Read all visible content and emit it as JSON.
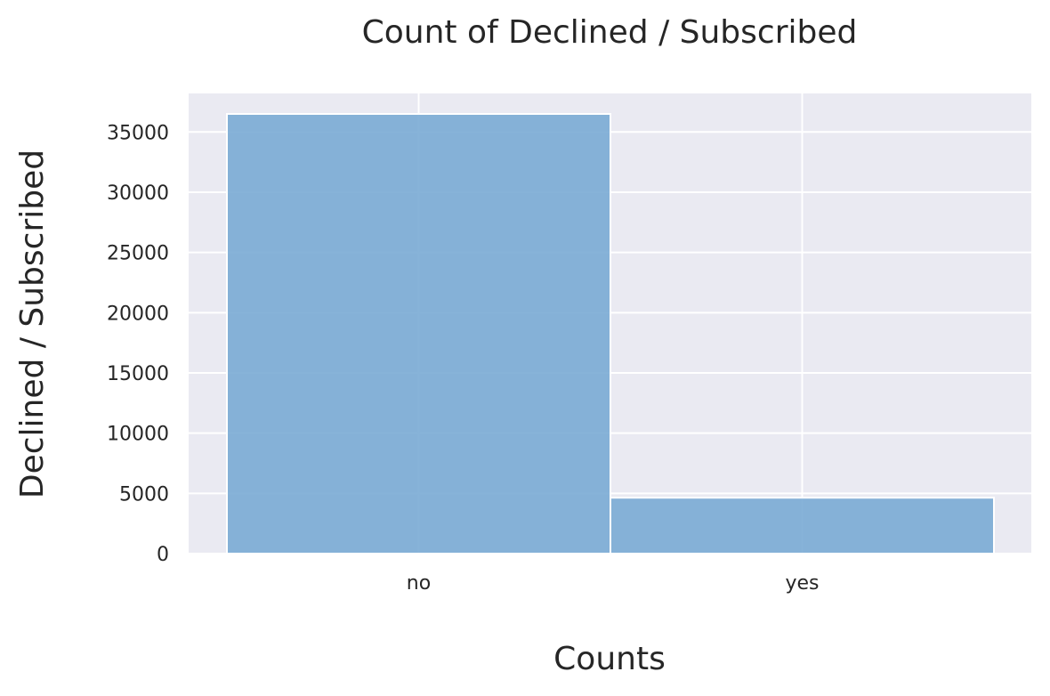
{
  "chart_data": {
    "type": "bar",
    "title": "Count of Declined / Subscribed",
    "xlabel": "Counts",
    "ylabel": "Declined / Subscribed",
    "categories": [
      "no",
      "yes"
    ],
    "values": [
      36500,
      4640
    ],
    "ylim": [
      0,
      38200
    ],
    "yticks": [
      0,
      5000,
      10000,
      15000,
      20000,
      25000,
      30000,
      35000
    ],
    "grid": true,
    "legend": "none",
    "colors": {
      "bar_fill": "#7aabd4",
      "bar_edge": "#ffffff",
      "plot_background": "#eaeaf2",
      "grid": "#ffffff",
      "text": "#262626"
    }
  }
}
